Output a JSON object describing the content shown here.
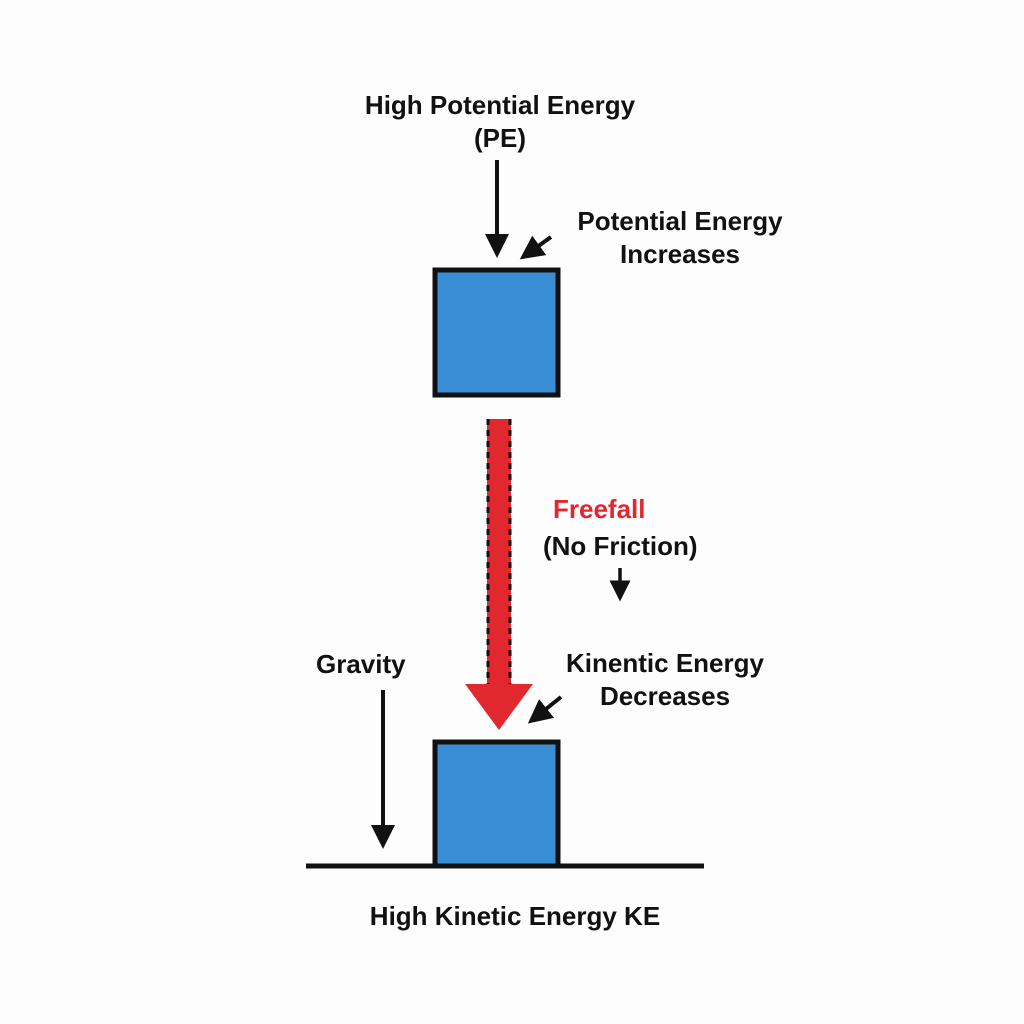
{
  "labels": {
    "high_pe_line1": "High Potential Energy",
    "high_pe_line2": "(PE)",
    "pe_increases_line1": "Potential Energy",
    "pe_increases_line2": "Increases",
    "freefall": "Freefall",
    "no_friction": "(No Friction)",
    "gravity": "Gravity",
    "ke_decreases_line1": "Kinentic Energy",
    "ke_decreases_line2": "Decreases",
    "high_ke": "High Kinetic Energy KE"
  },
  "colors": {
    "block_fill": "#3a8fd4",
    "outline": "#111111",
    "freefall": "#e0282e",
    "background": "#fdfdfd"
  }
}
